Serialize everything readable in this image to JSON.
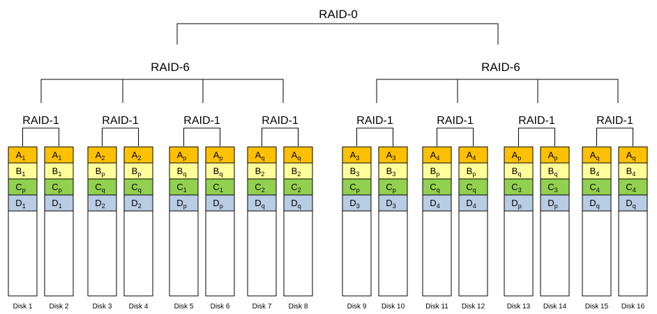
{
  "raid0": {
    "label": "RAID-0"
  },
  "raid6": [
    {
      "label": "RAID-6"
    },
    {
      "label": "RAID-6"
    }
  ],
  "raid1": [
    {
      "label": "RAID-1"
    },
    {
      "label": "RAID-1"
    },
    {
      "label": "RAID-1"
    },
    {
      "label": "RAID-1"
    },
    {
      "label": "RAID-1"
    },
    {
      "label": "RAID-1"
    },
    {
      "label": "RAID-1"
    },
    {
      "label": "RAID-1"
    }
  ],
  "colors": {
    "A": "#ffc000",
    "B": "#ffff99",
    "C": "#92d050",
    "D": "#b8cce4",
    "empty": "#ffffff",
    "border": "#000000"
  },
  "disks": [
    {
      "label": "Disk 1",
      "cells": [
        [
          "A",
          "1"
        ],
        [
          "B",
          "1"
        ],
        [
          "C",
          "p"
        ],
        [
          "D",
          "1"
        ]
      ]
    },
    {
      "label": "Disk 2",
      "cells": [
        [
          "A",
          "1"
        ],
        [
          "B",
          "1"
        ],
        [
          "C",
          "p"
        ],
        [
          "D",
          "1"
        ]
      ]
    },
    {
      "label": "Disk 3",
      "cells": [
        [
          "A",
          "2"
        ],
        [
          "B",
          "p"
        ],
        [
          "C",
          "q"
        ],
        [
          "D",
          "2"
        ]
      ]
    },
    {
      "label": "Disk 4",
      "cells": [
        [
          "A",
          "2"
        ],
        [
          "B",
          "p"
        ],
        [
          "C",
          "q"
        ],
        [
          "D",
          "2"
        ]
      ]
    },
    {
      "label": "Disk 5",
      "cells": [
        [
          "A",
          "p"
        ],
        [
          "B",
          "q"
        ],
        [
          "C",
          "1"
        ],
        [
          "D",
          "p"
        ]
      ]
    },
    {
      "label": "Disk 6",
      "cells": [
        [
          "A",
          "p"
        ],
        [
          "B",
          "q"
        ],
        [
          "C",
          "1"
        ],
        [
          "D",
          "p"
        ]
      ]
    },
    {
      "label": "Disk 7",
      "cells": [
        [
          "A",
          "q"
        ],
        [
          "B",
          "2"
        ],
        [
          "C",
          "2"
        ],
        [
          "D",
          "q"
        ]
      ]
    },
    {
      "label": "Disk 8",
      "cells": [
        [
          "A",
          "q"
        ],
        [
          "B",
          "2"
        ],
        [
          "C",
          "2"
        ],
        [
          "D",
          "q"
        ]
      ]
    },
    {
      "label": "Disk 9",
      "cells": [
        [
          "A",
          "3"
        ],
        [
          "B",
          "3"
        ],
        [
          "C",
          "p"
        ],
        [
          "D",
          "3"
        ]
      ]
    },
    {
      "label": "Disk 10",
      "cells": [
        [
          "A",
          "3"
        ],
        [
          "B",
          "3"
        ],
        [
          "C",
          "p"
        ],
        [
          "D",
          "3"
        ]
      ]
    },
    {
      "label": "Disk 11",
      "cells": [
        [
          "A",
          "4"
        ],
        [
          "B",
          "p"
        ],
        [
          "C",
          "q"
        ],
        [
          "D",
          "4"
        ]
      ]
    },
    {
      "label": "Disk 12",
      "cells": [
        [
          "A",
          "4"
        ],
        [
          "B",
          "p"
        ],
        [
          "C",
          "q"
        ],
        [
          "D",
          "4"
        ]
      ]
    },
    {
      "label": "Disk 13",
      "cells": [
        [
          "A",
          "p"
        ],
        [
          "B",
          "q"
        ],
        [
          "C",
          "3"
        ],
        [
          "D",
          "p"
        ]
      ]
    },
    {
      "label": "Disk 14",
      "cells": [
        [
          "A",
          "p"
        ],
        [
          "B",
          "q"
        ],
        [
          "C",
          "3"
        ],
        [
          "D",
          "p"
        ]
      ]
    },
    {
      "label": "Disk 15",
      "cells": [
        [
          "A",
          "q"
        ],
        [
          "B",
          "4"
        ],
        [
          "C",
          "4"
        ],
        [
          "D",
          "q"
        ]
      ]
    },
    {
      "label": "Disk 16",
      "cells": [
        [
          "A",
          "q"
        ],
        [
          "B",
          "4"
        ],
        [
          "C",
          "4"
        ],
        [
          "D",
          "q"
        ]
      ]
    }
  ]
}
